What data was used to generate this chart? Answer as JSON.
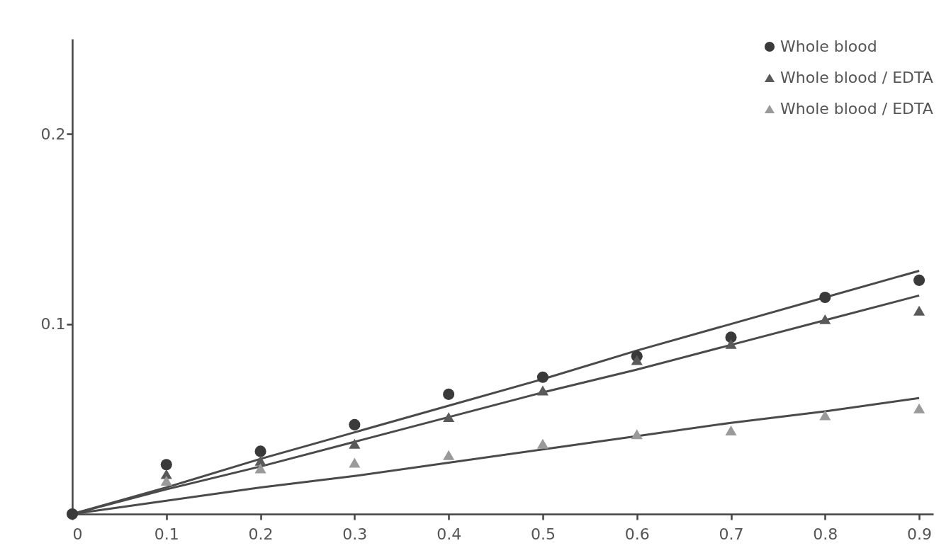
{
  "chart_data": {
    "type": "scatter",
    "xlim": [
      0,
      0.915
    ],
    "ylim": [
      0,
      0.25
    ],
    "xticks": [
      0,
      0.1,
      0.2,
      0.3,
      0.4,
      0.5,
      0.6,
      0.7,
      0.8,
      0.9
    ],
    "yticks": [
      0.1,
      0.2
    ],
    "x": [
      0,
      0.1,
      0.2,
      0.3,
      0.4,
      0.5,
      0.6,
      0.7,
      0.8,
      0.9
    ],
    "legend": "top right",
    "grid": false,
    "series": [
      {
        "name": "Whole blood",
        "color": "#3a3a3a",
        "marker": "circle",
        "values": [
          0,
          0.026,
          0.033,
          0.047,
          0.063,
          0.072,
          0.083,
          0.093,
          0.114,
          0.123
        ]
      },
      {
        "name": "Whole blood / EDTA",
        "color": "#5a5a5a",
        "marker": "triangle",
        "values": [
          null,
          0.021,
          0.028,
          0.037,
          0.051,
          0.065,
          0.081,
          0.0895,
          0.1025,
          0.107
        ]
      },
      {
        "name": "Whole blood / EDTA",
        "color": "#9a9a9a",
        "marker": "triangle",
        "values": [
          null,
          0.0175,
          0.024,
          0.027,
          0.031,
          0.037,
          0.042,
          0.044,
          0.052,
          0.0556
        ]
      },
      {
        "type": "line",
        "color": "#4a4a4a",
        "values": [
          0,
          0.014,
          0.029,
          0.043,
          0.057,
          0.071,
          0.086,
          0.1,
          0.114,
          0.128
        ]
      },
      {
        "type": "line",
        "color": "#4a4a4a",
        "values": [
          0,
          0.013,
          0.025,
          0.038,
          0.051,
          0.064,
          0.076,
          0.089,
          0.102,
          0.115
        ]
      },
      {
        "type": "line",
        "color": "#4a4a4a",
        "values": [
          0,
          0.007,
          0.014,
          0.02,
          0.027,
          0.034,
          0.041,
          0.048,
          0.054,
          0.061
        ]
      }
    ]
  }
}
